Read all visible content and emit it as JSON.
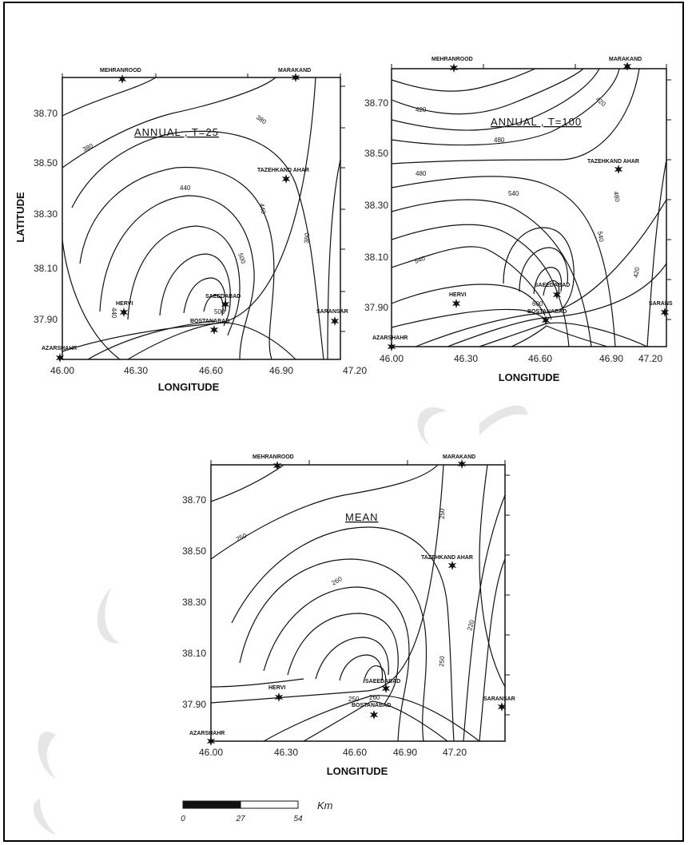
{
  "maps": [
    {
      "id": "t25",
      "title": "ANNUAL , T=25",
      "ylabel": "LATITUDE",
      "xlabel": "LONGITUDE",
      "xticks": [
        "46.00",
        "46.30",
        "46.60",
        "46.90",
        "47.20"
      ],
      "yticks": [
        "38.70",
        "38.50",
        "38.30",
        "38.10",
        "37.90"
      ],
      "isolines": [
        "380",
        "380",
        "440",
        "440",
        "500",
        "380",
        "440",
        "500"
      ],
      "stations": [
        "MEHRANROOD",
        "MARAKAND",
        "TAZEHKAND AHAR",
        "HERVI",
        "SAEEDABAD",
        "BOSTANABAD",
        "SARANSAR",
        "AZARSHAHR"
      ]
    },
    {
      "id": "t100",
      "title": "ANNUAL , T=100",
      "ylabel": "",
      "xlabel": "LONGITUDE",
      "xticks": [
        "46.00",
        "46.30",
        "46.60",
        "46.90",
        "47.20"
      ],
      "yticks": [
        "38.70",
        "38.50",
        "38.30",
        "38.10",
        "37.90"
      ],
      "isolines": [
        "420",
        "420",
        "480",
        "480",
        "540",
        "480",
        "540",
        "420",
        "540",
        "600"
      ],
      "stations": [
        "MEHRANROOD",
        "MARAKAND",
        "TAZEHKAND AHAR",
        "HERVI",
        "SAEEDABAD",
        "BOSTANABAD",
        "SARANS",
        "AZARSHAHR"
      ]
    },
    {
      "id": "mean",
      "title": "MEAN",
      "ylabel": "",
      "xlabel": "LONGITUDE",
      "xticks": [
        "46.00",
        "46.30",
        "46.60",
        "46.90",
        "47.20"
      ],
      "yticks": [
        "38.70",
        "38.50",
        "38.30",
        "38.10",
        "37.90"
      ],
      "isolines": [
        "250",
        "250",
        "260",
        "250",
        "220",
        "250",
        "260"
      ],
      "stations": [
        "MEHRANROOD",
        "MARAKAND",
        "TAZEHKAND AHAR",
        "HERVI",
        "SAEEDABAD",
        "BOSTANABAD",
        "SARANSAR",
        "AZARSHAHR"
      ]
    }
  ],
  "scale_bar": {
    "labels": [
      "0",
      "27",
      "54"
    ],
    "unit": "Km"
  },
  "icons": {
    "station": "star-icon"
  }
}
